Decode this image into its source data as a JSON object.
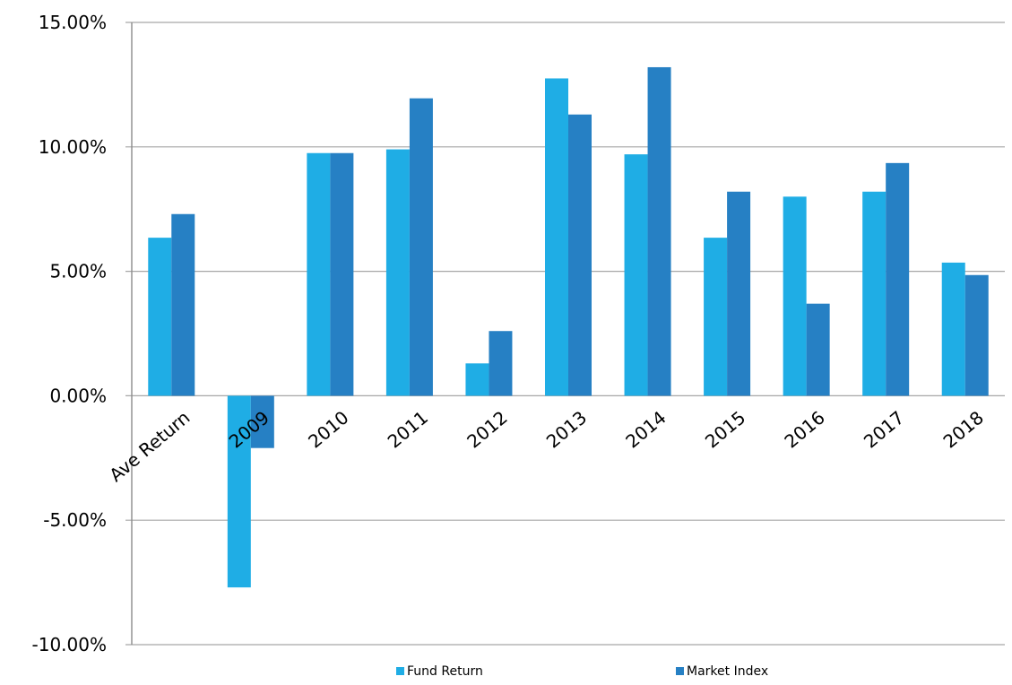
{
  "chart_data": {
    "type": "bar",
    "title": "",
    "xlabel": "",
    "ylabel": "",
    "categories": [
      "Ave Return",
      "2009",
      "2010",
      "2011",
      "2012",
      "2013",
      "2014",
      "2015",
      "2016",
      "2017",
      "2018"
    ],
    "series": [
      {
        "name": "Fund Return",
        "color": "#1fadE5",
        "values": [
          6.35,
          -7.7,
          9.75,
          9.9,
          1.3,
          12.75,
          9.7,
          6.35,
          8.0,
          8.2,
          5.35
        ]
      },
      {
        "name": "Market Index",
        "color": "#2680c4",
        "values": [
          7.3,
          -2.1,
          9.75,
          11.95,
          2.6,
          11.3,
          13.2,
          8.2,
          3.7,
          9.35,
          4.85
        ]
      }
    ],
    "ylim": [
      -10,
      15
    ],
    "yticks": [
      15,
      10,
      5,
      0,
      -5,
      -10
    ],
    "ytick_labels": [
      "15.00%",
      "10.00%",
      "5.00%",
      "0.00%",
      "-5.00%",
      "-10.00%"
    ],
    "grid": true,
    "legend_position": "bottom"
  }
}
